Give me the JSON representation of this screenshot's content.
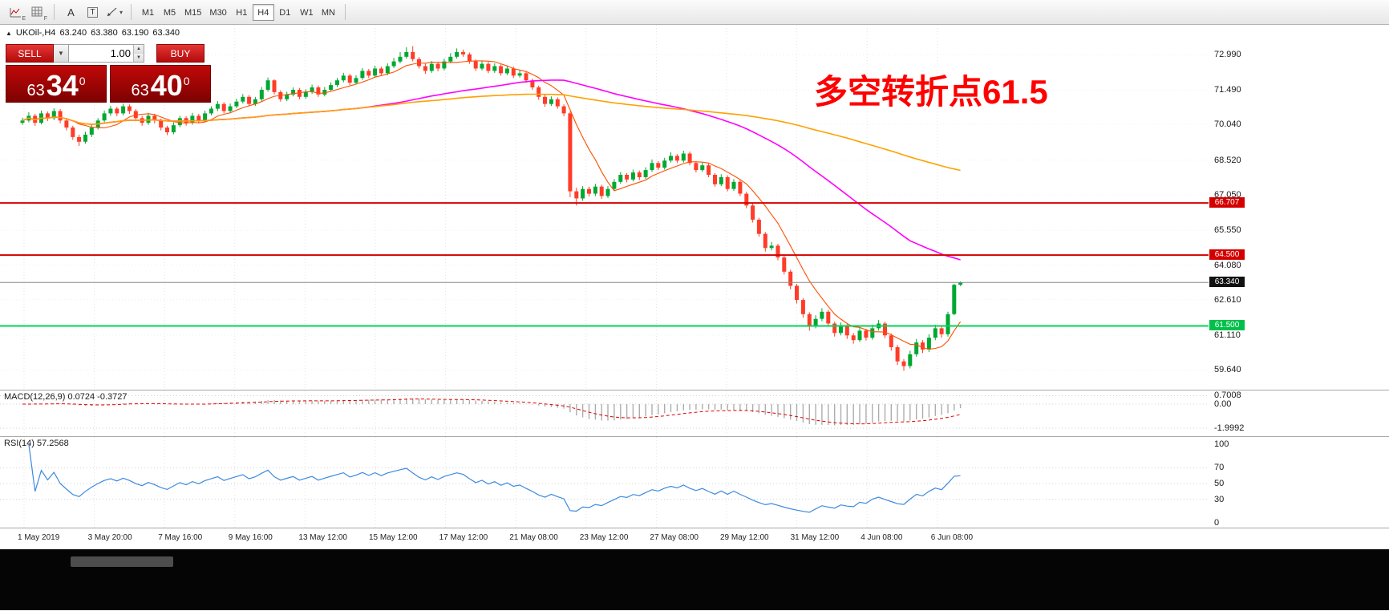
{
  "toolbar": {
    "icon_sub_1": "E",
    "icon_sub_2": "F",
    "tool_a": "A",
    "tool_t": "T",
    "timeframes": [
      "M1",
      "M5",
      "M15",
      "M30",
      "H1",
      "H4",
      "D1",
      "W1",
      "MN"
    ],
    "active_timeframe": "H4"
  },
  "symbol_bar": {
    "toggle_icon": "▲",
    "symbol": "UKOil-,H4",
    "open": "63.240",
    "high": "63.380",
    "low": "63.190",
    "close": "63.340"
  },
  "trade_panel": {
    "sell_label": "SELL",
    "buy_label": "BUY",
    "volume_value": "1.00",
    "sell_price_main": "63",
    "sell_price_big": "34",
    "sell_price_sup": "0",
    "buy_price_main": "63",
    "buy_price_big": "40",
    "buy_price_sup": "0"
  },
  "annotation": {
    "text": "多空转折点61.5",
    "color": "#ff0000"
  },
  "main_axis_labels": [
    "72.990",
    "71.490",
    "70.040",
    "68.520",
    "67.050",
    "65.550",
    "64.080",
    "62.610",
    "61.110",
    "59.640"
  ],
  "price_tags": [
    {
      "label": "66.707",
      "bg": "#d40000"
    },
    {
      "label": "64.500",
      "bg": "#d40000"
    },
    {
      "label": "63.340",
      "bg": "#111111"
    },
    {
      "label": "61.500",
      "bg": "#00c04a"
    }
  ],
  "macd_panel": {
    "label": "MACD(12,26,9) 0.0724 -0.3727",
    "axis_labels": [
      "0.7008",
      "0.00",
      "-1.9992"
    ],
    "axis_values": [
      0.7008,
      0,
      -1.9992
    ]
  },
  "rsi_panel": {
    "label": "RSI(14) 57.2568",
    "axis_labels": [
      "100",
      "70",
      "50",
      "30",
      "0"
    ],
    "axis_values": [
      100,
      70,
      50,
      30,
      0
    ]
  },
  "time_axis": [
    "1 May 2019",
    "3 May 20:00",
    "7 May 16:00",
    "9 May 16:00",
    "13 May 12:00",
    "15 May 12:00",
    "17 May 12:00",
    "21 May 08:00",
    "23 May 12:00",
    "27 May 08:00",
    "29 May 12:00",
    "31 May 12:00",
    "4 Jun 08:00",
    "6 Jun 08:00"
  ],
  "chart_data": {
    "type": "candlestick",
    "symbol": "UKOil-",
    "timeframe": "H4",
    "price_range": [
      58.8,
      74.25
    ],
    "up_color": "#00a832",
    "down_color": "#ff3c28",
    "horizontal_lines": [
      {
        "price": 66.707,
        "color": "#d40000",
        "width": 2
      },
      {
        "price": 64.5,
        "color": "#d40000",
        "width": 2
      },
      {
        "price": 63.34,
        "color": "#8a8a8a",
        "width": 1
      },
      {
        "price": 61.5,
        "color": "#00d457",
        "width": 2
      }
    ],
    "moving_averages": [
      {
        "period": 8,
        "color": "#ff4f00",
        "width": 1.1
      },
      {
        "period": 55,
        "color": "#ff00ff",
        "width": 1.6
      },
      {
        "period": 120,
        "color": "#ffa000",
        "width": 1.6
      }
    ],
    "candles_ohlc": [
      [
        70.1,
        70.32,
        70.02,
        70.2
      ],
      [
        70.2,
        70.55,
        70.12,
        70.4
      ],
      [
        70.4,
        70.48,
        69.98,
        70.1
      ],
      [
        70.1,
        70.62,
        70.03,
        70.5
      ],
      [
        70.5,
        70.58,
        70.18,
        70.3
      ],
      [
        70.3,
        70.72,
        70.22,
        70.6
      ],
      [
        70.6,
        70.68,
        70.08,
        70.2
      ],
      [
        70.2,
        70.3,
        69.78,
        69.9
      ],
      [
        69.9,
        69.98,
        69.38,
        69.5
      ],
      [
        69.5,
        69.6,
        69.12,
        69.3
      ],
      [
        69.3,
        69.72,
        69.22,
        69.6
      ],
      [
        69.6,
        70.02,
        69.5,
        69.9
      ],
      [
        69.9,
        70.3,
        69.82,
        70.2
      ],
      [
        70.2,
        70.62,
        70.12,
        70.5
      ],
      [
        70.5,
        70.82,
        70.4,
        70.7
      ],
      [
        70.7,
        70.78,
        70.38,
        70.5
      ],
      [
        70.5,
        70.92,
        70.42,
        70.8
      ],
      [
        70.8,
        70.88,
        70.48,
        70.6
      ],
      [
        70.6,
        70.68,
        70.18,
        70.3
      ],
      [
        70.3,
        70.4,
        69.98,
        70.1
      ],
      [
        70.1,
        70.52,
        70.02,
        70.4
      ],
      [
        70.4,
        70.48,
        70.08,
        70.2
      ],
      [
        70.2,
        70.28,
        69.78,
        69.9
      ],
      [
        69.9,
        69.98,
        69.58,
        69.7
      ],
      [
        69.7,
        70.12,
        69.62,
        70.0
      ],
      [
        70.0,
        70.4,
        69.92,
        70.3
      ],
      [
        70.3,
        70.38,
        69.98,
        70.1
      ],
      [
        70.1,
        70.52,
        70.02,
        70.4
      ],
      [
        70.4,
        70.48,
        70.08,
        70.2
      ],
      [
        70.2,
        70.62,
        70.12,
        70.5
      ],
      [
        70.5,
        70.8,
        70.42,
        70.7
      ],
      [
        70.7,
        71.02,
        70.6,
        70.9
      ],
      [
        70.9,
        70.98,
        70.5,
        70.6
      ],
      [
        70.6,
        70.92,
        70.52,
        70.8
      ],
      [
        70.8,
        71.12,
        70.72,
        71.0
      ],
      [
        71.0,
        71.32,
        70.92,
        71.2
      ],
      [
        71.2,
        71.28,
        70.8,
        70.9
      ],
      [
        70.9,
        71.2,
        70.82,
        71.1
      ],
      [
        71.1,
        71.62,
        71.02,
        71.5
      ],
      [
        71.5,
        72.02,
        71.42,
        71.9
      ],
      [
        71.9,
        71.95,
        71.3,
        71.4
      ],
      [
        71.4,
        71.48,
        71.0,
        71.1
      ],
      [
        71.1,
        71.42,
        71.02,
        71.3
      ],
      [
        71.3,
        71.6,
        71.22,
        71.5
      ],
      [
        71.5,
        71.58,
        71.1,
        71.2
      ],
      [
        71.2,
        71.52,
        71.12,
        71.4
      ],
      [
        71.4,
        71.72,
        71.32,
        71.6
      ],
      [
        71.6,
        71.68,
        71.2,
        71.3
      ],
      [
        71.3,
        71.62,
        71.22,
        71.5
      ],
      [
        71.5,
        71.82,
        71.42,
        71.7
      ],
      [
        71.7,
        72.0,
        71.62,
        71.9
      ],
      [
        71.9,
        72.22,
        71.82,
        72.1
      ],
      [
        72.1,
        72.18,
        71.7,
        71.8
      ],
      [
        71.8,
        72.12,
        71.72,
        72.0
      ],
      [
        72.0,
        72.42,
        71.92,
        72.3
      ],
      [
        72.3,
        72.38,
        72.0,
        72.1
      ],
      [
        72.1,
        72.52,
        72.02,
        72.4
      ],
      [
        72.4,
        72.48,
        72.1,
        72.2
      ],
      [
        72.2,
        72.62,
        72.12,
        72.5
      ],
      [
        72.5,
        72.85,
        72.42,
        72.7
      ],
      [
        72.7,
        73.1,
        72.62,
        72.9
      ],
      [
        72.9,
        73.3,
        72.82,
        73.1
      ],
      [
        73.1,
        73.35,
        72.7,
        72.8
      ],
      [
        72.8,
        72.88,
        72.4,
        72.5
      ],
      [
        72.5,
        72.6,
        72.18,
        72.3
      ],
      [
        72.3,
        72.72,
        72.22,
        72.6
      ],
      [
        72.6,
        72.68,
        72.28,
        72.4
      ],
      [
        72.4,
        72.82,
        72.32,
        72.7
      ],
      [
        72.7,
        73.05,
        72.62,
        72.9
      ],
      [
        72.9,
        73.25,
        72.82,
        73.1
      ],
      [
        73.1,
        73.2,
        72.9,
        73.0
      ],
      [
        73.0,
        73.08,
        72.6,
        72.7
      ],
      [
        72.7,
        72.78,
        72.3,
        72.4
      ],
      [
        72.4,
        72.72,
        72.32,
        72.6
      ],
      [
        72.6,
        72.68,
        72.2,
        72.3
      ],
      [
        72.3,
        72.62,
        72.22,
        72.5
      ],
      [
        72.5,
        72.58,
        72.1,
        72.2
      ],
      [
        72.2,
        72.52,
        72.12,
        72.4
      ],
      [
        72.4,
        72.48,
        72.0,
        72.1
      ],
      [
        72.1,
        72.32,
        72.02,
        72.2
      ],
      [
        72.2,
        72.28,
        71.8,
        71.9
      ],
      [
        71.9,
        71.98,
        71.5,
        71.6
      ],
      [
        71.6,
        71.68,
        71.08,
        71.2
      ],
      [
        71.2,
        71.28,
        70.78,
        70.9
      ],
      [
        70.9,
        71.22,
        70.82,
        71.1
      ],
      [
        71.1,
        71.18,
        70.7,
        70.8
      ],
      [
        70.8,
        70.88,
        70.38,
        70.5
      ],
      [
        70.5,
        70.58,
        66.95,
        67.2
      ],
      [
        67.2,
        67.35,
        66.6,
        66.9
      ],
      [
        66.9,
        67.42,
        66.8,
        67.3
      ],
      [
        67.3,
        67.4,
        66.98,
        67.1
      ],
      [
        67.1,
        67.52,
        67.0,
        67.4
      ],
      [
        67.4,
        67.48,
        66.88,
        67.0
      ],
      [
        67.0,
        67.42,
        66.92,
        67.3
      ],
      [
        67.3,
        67.72,
        67.22,
        67.6
      ],
      [
        67.6,
        68.02,
        67.52,
        67.9
      ],
      [
        67.9,
        67.98,
        67.58,
        67.7
      ],
      [
        67.7,
        68.12,
        67.62,
        68.0
      ],
      [
        68.0,
        68.08,
        67.68,
        67.8
      ],
      [
        67.8,
        68.22,
        67.72,
        68.1
      ],
      [
        68.1,
        68.55,
        68.02,
        68.4
      ],
      [
        68.4,
        68.48,
        68.1,
        68.2
      ],
      [
        68.2,
        68.62,
        68.12,
        68.5
      ],
      [
        68.5,
        68.85,
        68.42,
        68.7
      ],
      [
        68.7,
        68.78,
        68.4,
        68.5
      ],
      [
        68.5,
        68.92,
        68.42,
        68.8
      ],
      [
        68.8,
        68.88,
        68.3,
        68.4
      ],
      [
        68.4,
        68.48,
        68.0,
        68.1
      ],
      [
        68.1,
        68.42,
        68.02,
        68.3
      ],
      [
        68.3,
        68.38,
        67.8,
        67.9
      ],
      [
        67.9,
        67.98,
        67.4,
        67.5
      ],
      [
        67.5,
        67.92,
        67.42,
        67.8
      ],
      [
        67.8,
        67.88,
        67.2,
        67.3
      ],
      [
        67.3,
        67.72,
        67.22,
        67.6
      ],
      [
        67.6,
        67.68,
        67.0,
        67.1
      ],
      [
        67.1,
        67.18,
        66.48,
        66.6
      ],
      [
        66.6,
        66.68,
        65.88,
        66.0
      ],
      [
        66.0,
        66.08,
        65.28,
        65.4
      ],
      [
        65.4,
        65.48,
        64.65,
        64.8
      ],
      [
        64.8,
        65.05,
        64.7,
        64.9
      ],
      [
        64.9,
        64.98,
        64.28,
        64.4
      ],
      [
        64.4,
        64.48,
        63.68,
        63.8
      ],
      [
        63.8,
        63.88,
        63.05,
        63.2
      ],
      [
        63.2,
        63.28,
        62.45,
        62.6
      ],
      [
        62.6,
        62.68,
        61.85,
        62.0
      ],
      [
        62.0,
        62.08,
        61.3,
        61.5
      ],
      [
        61.5,
        61.95,
        61.4,
        61.8
      ],
      [
        61.8,
        62.25,
        61.7,
        62.1
      ],
      [
        62.1,
        62.18,
        61.48,
        61.6
      ],
      [
        61.6,
        61.68,
        61.05,
        61.2
      ],
      [
        61.2,
        61.65,
        61.1,
        61.5
      ],
      [
        61.5,
        61.58,
        60.95,
        61.1
      ],
      [
        61.1,
        61.2,
        60.75,
        60.9
      ],
      [
        60.9,
        61.45,
        60.82,
        61.3
      ],
      [
        61.3,
        61.38,
        60.88,
        61.0
      ],
      [
        61.0,
        61.55,
        60.92,
        61.4
      ],
      [
        61.4,
        61.75,
        61.3,
        61.6
      ],
      [
        61.6,
        61.68,
        60.98,
        61.1
      ],
      [
        61.1,
        61.18,
        60.45,
        60.6
      ],
      [
        60.6,
        60.7,
        59.85,
        60.0
      ],
      [
        60.0,
        60.1,
        59.6,
        59.8
      ],
      [
        59.8,
        60.45,
        59.7,
        60.3
      ],
      [
        60.3,
        60.95,
        60.2,
        60.8
      ],
      [
        60.8,
        60.9,
        60.35,
        60.5
      ],
      [
        60.5,
        61.15,
        60.4,
        61.0
      ],
      [
        61.0,
        61.55,
        60.9,
        61.4
      ],
      [
        61.4,
        61.5,
        61.0,
        61.15
      ],
      [
        61.15,
        62.1,
        61.05,
        62.0
      ],
      [
        62.0,
        63.28,
        61.95,
        63.24
      ],
      [
        63.24,
        63.38,
        63.19,
        63.34
      ]
    ],
    "macd": {
      "fast": 12,
      "slow": 26,
      "signal": 9,
      "hist_color": "#adadad",
      "signal_color": "#e00000"
    },
    "rsi": {
      "period": 14,
      "levels": [
        70,
        50,
        30
      ],
      "color": "#3c8ae0"
    }
  }
}
